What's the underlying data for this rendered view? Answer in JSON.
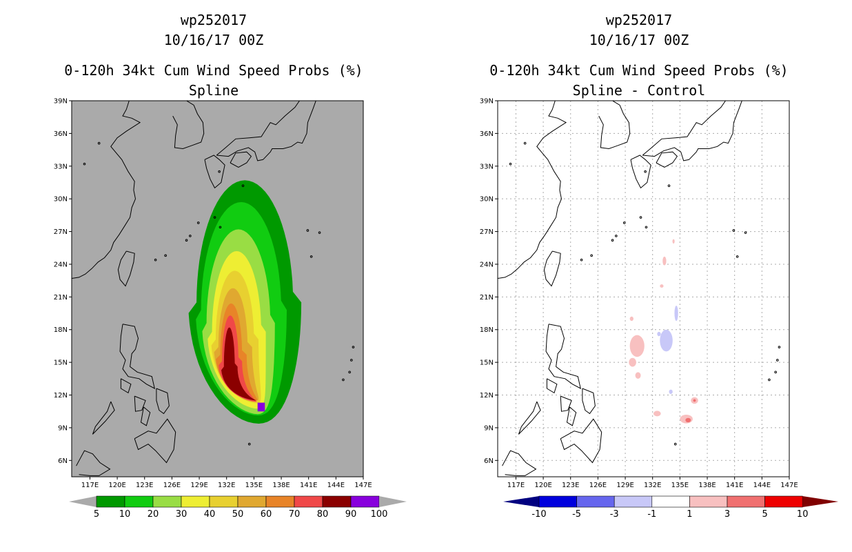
{
  "chart_data": [
    {
      "type": "heatmap",
      "storm_id": "wp252017",
      "datetime": "10/16/17 00Z",
      "title": "0-120h 34kt Cum Wind Speed Probs (%)",
      "subtitle": "Spline",
      "xlim": [
        115,
        147
      ],
      "ylim": [
        4.5,
        39
      ],
      "x_ticks": [
        "117E",
        "120E",
        "123E",
        "126E",
        "129E",
        "132E",
        "135E",
        "138E",
        "141E",
        "144E",
        "147E"
      ],
      "y_ticks": [
        "39N",
        "36N",
        "33N",
        "30N",
        "27N",
        "24N",
        "21N",
        "18N",
        "15N",
        "12N",
        "9N",
        "6N"
      ],
      "colorbar": {
        "labels": [
          "5",
          "10",
          "20",
          "30",
          "40",
          "50",
          "60",
          "70",
          "80",
          "90",
          "100"
        ],
        "colors": [
          "#009900",
          "#11cc11",
          "#99dd44",
          "#eeee33",
          "#e8d030",
          "#e0a830",
          "#e88428",
          "#f04848",
          "#8b0000",
          "#8800dd"
        ],
        "min_color": "#aaaaaa",
        "max_color": "#aaaaaa"
      },
      "contours": [
        {
          "level": 5,
          "color": "#009900",
          "center": [
            134.0,
            20.5
          ],
          "ry": 11.2,
          "rx_top": 5.3,
          "rx_bottom": 6.2
        },
        {
          "level": 10,
          "color": "#11cc11",
          "center": [
            133.6,
            19.8
          ],
          "ry": 9.9,
          "rx_top": 4.4,
          "rx_bottom": 5.0
        },
        {
          "level": 20,
          "color": "#99dd44",
          "center": [
            133.3,
            18.6
          ],
          "ry": 8.6,
          "rx_top": 3.5,
          "rx_bottom": 4.0
        },
        {
          "level": 30,
          "color": "#eeee33",
          "center": [
            133.1,
            17.8
          ],
          "ry": 7.4,
          "rx_top": 2.7,
          "rx_bottom": 3.2
        },
        {
          "level": 40,
          "color": "#e8d030",
          "center": [
            132.9,
            17.1
          ],
          "ry": 6.3,
          "rx_top": 2.1,
          "rx_bottom": 2.6
        },
        {
          "level": 50,
          "color": "#e0a830",
          "center": [
            132.7,
            16.4
          ],
          "ry": 5.4,
          "rx_top": 1.6,
          "rx_bottom": 2.1
        },
        {
          "level": 60,
          "color": "#e88428",
          "center": [
            132.5,
            15.7
          ],
          "ry": 4.7,
          "rx_top": 1.2,
          "rx_bottom": 1.7
        },
        {
          "level": 70,
          "color": "#f04848",
          "center": [
            132.4,
            15.1
          ],
          "ry": 4.2,
          "rx_top": 0.9,
          "rx_bottom": 1.3
        },
        {
          "level": 80,
          "color": "#8b0000",
          "center": [
            132.3,
            14.6
          ],
          "ry": 3.6,
          "rx_top": 0.6,
          "rx_bottom": 0.9
        },
        {
          "level": 90,
          "color": "#8800dd",
          "center": [
            135.8,
            10.9
          ],
          "ry": 0.4,
          "rx_top": 0.4,
          "rx_bottom": 0.4
        }
      ]
    },
    {
      "type": "heatmap",
      "storm_id": "wp252017",
      "datetime": "10/16/17 00Z",
      "title": "0-120h 34kt Cum Wind Speed Probs (%)",
      "subtitle": "Spline - Control",
      "xlim": [
        115,
        147
      ],
      "ylim": [
        4.5,
        39
      ],
      "x_ticks": [
        "117E",
        "120E",
        "123E",
        "126E",
        "129E",
        "132E",
        "135E",
        "138E",
        "141E",
        "144E",
        "147E"
      ],
      "y_ticks": [
        "39N",
        "36N",
        "33N",
        "30N",
        "27N",
        "24N",
        "21N",
        "18N",
        "15N",
        "12N",
        "9N",
        "6N"
      ],
      "grid": true,
      "colorbar": {
        "labels": [
          "-10",
          "-5",
          "-3",
          "-1",
          "1",
          "3",
          "5",
          "10"
        ],
        "colors": [
          "#0000dd",
          "#6666ee",
          "#c8c8f8",
          "#ffffff",
          "#f8c0c0",
          "#f07070",
          "#ee0000"
        ],
        "min_color": "#000080",
        "max_color": "#800000"
      },
      "blobs": [
        {
          "x": 130.3,
          "y": 16.5,
          "rx": 0.8,
          "ry": 1.0,
          "color": "#f8c0c0"
        },
        {
          "x": 129.8,
          "y": 15.0,
          "rx": 0.4,
          "ry": 0.4,
          "color": "#f8c0c0"
        },
        {
          "x": 130.4,
          "y": 13.8,
          "rx": 0.3,
          "ry": 0.3,
          "color": "#f8c0c0"
        },
        {
          "x": 129.7,
          "y": 19.0,
          "rx": 0.2,
          "ry": 0.2,
          "color": "#f8c0c0"
        },
        {
          "x": 133.5,
          "y": 17.0,
          "rx": 0.7,
          "ry": 1.0,
          "color": "#c8c8f8"
        },
        {
          "x": 134.6,
          "y": 19.5,
          "rx": 0.2,
          "ry": 0.7,
          "color": "#c8c8f8"
        },
        {
          "x": 132.7,
          "y": 17.6,
          "rx": 0.2,
          "ry": 0.2,
          "color": "#c8c8f8"
        },
        {
          "x": 134.0,
          "y": 12.3,
          "rx": 0.2,
          "ry": 0.2,
          "color": "#c8c8f8"
        },
        {
          "x": 135.7,
          "y": 9.8,
          "rx": 0.7,
          "ry": 0.4,
          "color": "#f8c0c0"
        },
        {
          "x": 135.9,
          "y": 9.7,
          "rx": 0.3,
          "ry": 0.2,
          "color": "#f07070"
        },
        {
          "x": 136.6,
          "y": 11.5,
          "rx": 0.4,
          "ry": 0.3,
          "color": "#f8c0c0"
        },
        {
          "x": 136.6,
          "y": 11.5,
          "rx": 0.15,
          "ry": 0.12,
          "color": "#f07070"
        },
        {
          "x": 132.5,
          "y": 10.3,
          "rx": 0.4,
          "ry": 0.25,
          "color": "#f8c0c0"
        },
        {
          "x": 133.3,
          "y": 24.3,
          "rx": 0.2,
          "ry": 0.4,
          "color": "#f8c0c0"
        },
        {
          "x": 133.0,
          "y": 22.0,
          "rx": 0.2,
          "ry": 0.15,
          "color": "#f8c0c0"
        },
        {
          "x": 134.3,
          "y": 26.1,
          "rx": 0.12,
          "ry": 0.2,
          "color": "#f8c0c0"
        }
      ]
    }
  ]
}
